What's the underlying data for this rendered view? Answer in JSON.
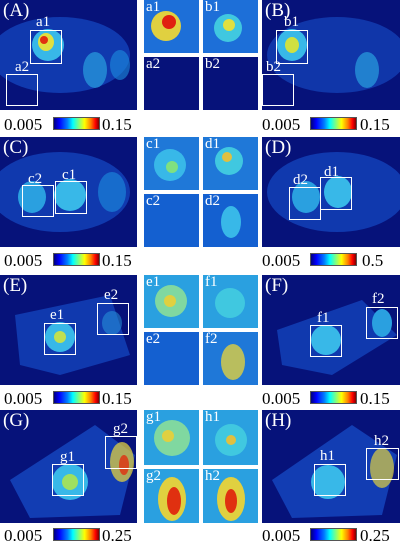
{
  "figure": {
    "panels": [
      {
        "id": "A",
        "label": "(A)",
        "min": "0.005",
        "max": "0.15",
        "box1": "a1",
        "box2": "a2",
        "tiles": [
          "a1",
          "a2"
        ]
      },
      {
        "id": "B",
        "label": "(B)",
        "min": "0.005",
        "max": "0.15",
        "box1": "b1",
        "box2": "b2",
        "tiles": [
          "b1",
          "b2"
        ]
      },
      {
        "id": "C",
        "label": "(C)",
        "min": "0.005",
        "max": "0.15",
        "box1": "c1",
        "box2": "c2",
        "tiles": [
          "c1",
          "c2"
        ]
      },
      {
        "id": "D",
        "label": "(D)",
        "min": "0.005",
        "max": "0.5",
        "box1": "d1",
        "box2": "d2",
        "tiles": [
          "d1",
          "d2"
        ]
      },
      {
        "id": "E",
        "label": "(E)",
        "min": "0.005",
        "max": "0.15",
        "box1": "e1",
        "box2": "e2",
        "tiles": [
          "e1",
          "e2"
        ]
      },
      {
        "id": "F",
        "label": "(F)",
        "min": "0.005",
        "max": "0.15",
        "box1": "f1",
        "box2": "f2",
        "tiles": [
          "f1",
          "f2"
        ]
      },
      {
        "id": "G",
        "label": "(G)",
        "min": "0.005",
        "max": "0.25",
        "box1": "g1",
        "box2": "g2",
        "tiles": [
          "g1",
          "g2"
        ]
      },
      {
        "id": "H",
        "label": "(H)",
        "min": "0.005",
        "max": "0.25",
        "box1": "h1",
        "box2": "h2",
        "tiles": [
          "h1",
          "h2"
        ]
      }
    ],
    "colormap": [
      "#00007f",
      "#0000ff",
      "#0080ff",
      "#00ffff",
      "#80ff80",
      "#ffff00",
      "#ff8000",
      "#ff0000",
      "#800000"
    ]
  }
}
